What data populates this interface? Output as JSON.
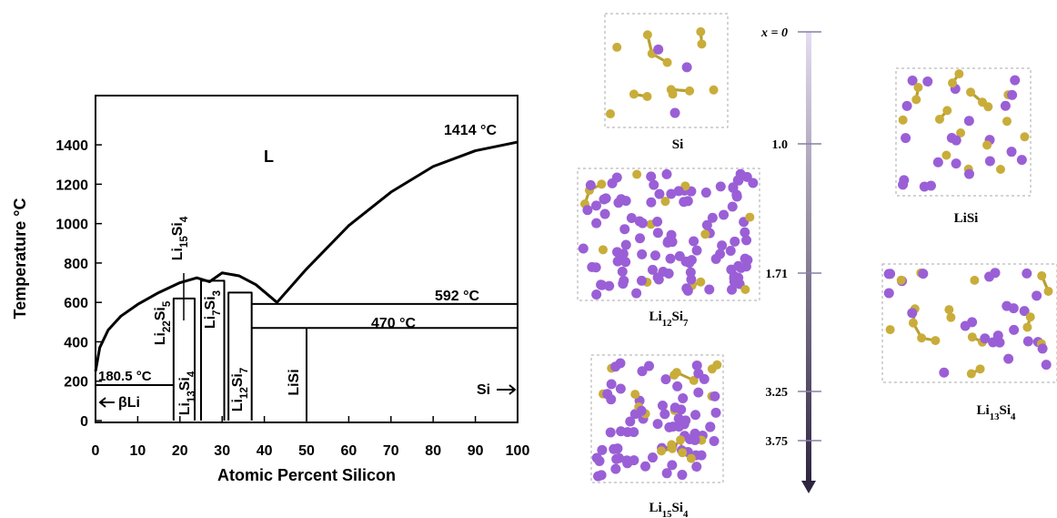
{
  "chart_data": {
    "type": "line",
    "xlabel": "Atomic Percent Silicon",
    "ylabel": "Temperature °C",
    "xlim": [
      0,
      100
    ],
    "ylim": [
      0,
      1650
    ],
    "xticks": [
      0,
      10,
      20,
      30,
      40,
      50,
      60,
      70,
      80,
      90,
      100
    ],
    "yticks": [
      0,
      200,
      400,
      600,
      800,
      1000,
      1200,
      1400
    ],
    "series": [
      {
        "color": "#000000",
        "x": [
          0,
          1,
          3,
          6,
          10,
          15,
          20,
          24,
          27,
          30,
          34,
          38,
          43,
          50,
          60,
          70,
          80,
          90,
          100
        ],
        "values": [
          250,
          370,
          460,
          530,
          590,
          650,
          700,
          725,
          705,
          750,
          735,
          690,
          600,
          770,
          990,
          1160,
          1290,
          1370,
          1414
        ]
      },
      {
        "color": "#000000",
        "x": [
          0,
          18.5
        ],
        "values": [
          180.5,
          180.5
        ]
      },
      {
        "color": "#000000",
        "x": [
          18.5,
          18.5,
          23.5,
          23.5
        ],
        "values": [
          0,
          620,
          620,
          0
        ]
      },
      {
        "color": "#000000",
        "x": [
          25,
          25,
          30.5,
          30.5
        ],
        "values": [
          0,
          710,
          710,
          0
        ]
      },
      {
        "color": "#000000",
        "x": [
          31.5,
          31.5,
          37,
          37
        ],
        "values": [
          0,
          650,
          650,
          0
        ]
      },
      {
        "color": "#000000",
        "x": [
          37,
          100
        ],
        "values": [
          592,
          592
        ]
      },
      {
        "color": "#000000",
        "x": [
          37,
          100
        ],
        "values": [
          470,
          470
        ]
      },
      {
        "color": "#000000",
        "x": [
          50,
          50
        ],
        "values": [
          0,
          470
        ]
      }
    ],
    "annotations": [
      "L",
      "1414 °C",
      "592 °C",
      "470 °C",
      "180.5 °C",
      "βLi",
      "Si"
    ],
    "phases": [
      "Li22Si5",
      "Li15Si4",
      "Li13Si4",
      "Li7Si3",
      "Li12Si7",
      "LiSi"
    ]
  },
  "structures": {
    "scale_ticks": [
      {
        "value": 0,
        "label": "x = 0"
      },
      {
        "value": 1,
        "label": "1.0"
      },
      1.71,
      3.25,
      3.75
    ],
    "labels": [
      "Si",
      "Li12Si7",
      "Li15Si4",
      "LiSi",
      "Li13Si4"
    ]
  }
}
